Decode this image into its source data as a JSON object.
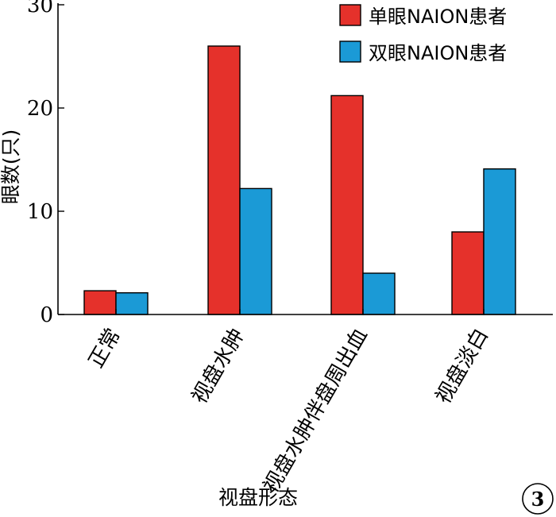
{
  "chart_data": {
    "type": "bar",
    "categories": [
      "正常",
      "视盘水肿",
      "视盘水肿伴盘周出血",
      "视盘淡白"
    ],
    "series": [
      {
        "name": "单眼NAION患者",
        "values": [
          2.3,
          26.0,
          21.2,
          8.0
        ],
        "color": "#e5312b"
      },
      {
        "name": "双眼NAION患者",
        "values": [
          2.1,
          12.2,
          4.0,
          14.1
        ],
        "color": "#1b9ad6"
      }
    ],
    "xlabel": "视盘形态",
    "ylabel": "眼数(只)",
    "ylim": [
      0,
      30
    ],
    "yticks": [
      0,
      10,
      20,
      30
    ],
    "legend_position": "top-right",
    "grid": false
  },
  "panel_label": "3"
}
